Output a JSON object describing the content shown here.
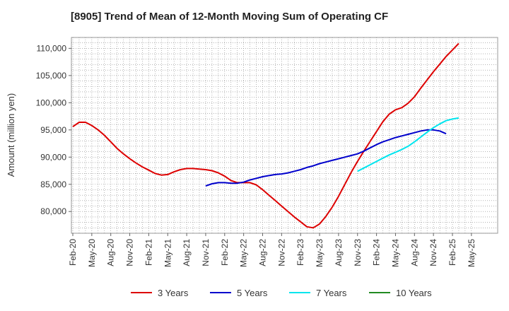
{
  "chart_data": {
    "type": "line",
    "title": "[8905]  Trend of Mean of 12-Month Moving Sum of Operating CF",
    "xlabel": "",
    "ylabel": "Amount (million yen)",
    "ylim": [
      76000,
      112000
    ],
    "yticks": [
      80000,
      85000,
      90000,
      95000,
      100000,
      105000,
      110000
    ],
    "ytick_labels": [
      "80,000",
      "85,000",
      "90,000",
      "95,000",
      "100,000",
      "105,000",
      "110,000"
    ],
    "xticks": [
      "Feb-20",
      "May-20",
      "Aug-20",
      "Nov-20",
      "Feb-21",
      "May-21",
      "Aug-21",
      "Nov-21",
      "Feb-22",
      "May-22",
      "Aug-22",
      "Nov-22",
      "Feb-23",
      "May-23",
      "Aug-23",
      "Nov-23",
      "Feb-24",
      "May-24",
      "Aug-24",
      "Nov-24",
      "Feb-25",
      "May-25"
    ],
    "grid": true,
    "legend_position": "bottom",
    "series": [
      {
        "name": "3 Years",
        "color": "#dd0000",
        "start_index": 0,
        "values": [
          95600,
          96400,
          96400,
          95800,
          95000,
          94000,
          92800,
          91600,
          90600,
          89700,
          88900,
          88200,
          87600,
          87000,
          86700,
          86800,
          87300,
          87700,
          87900,
          87900,
          87800,
          87700,
          87500,
          87100,
          86500,
          85700,
          85300,
          85300,
          85300,
          84900,
          84000,
          83000,
          82000,
          81000,
          80000,
          79000,
          78100,
          77200,
          77000,
          77700,
          79100,
          80800,
          82800,
          85000,
          87200,
          89200,
          91100,
          92900,
          94700,
          96500,
          97900,
          98700,
          99100,
          99900,
          101100,
          102700,
          104200,
          105700,
          107100,
          108500,
          109700,
          110900
        ]
      },
      {
        "name": "5 Years",
        "color": "#0000cc",
        "start_index": 21,
        "values": [
          84700,
          85100,
          85300,
          85300,
          85200,
          85200,
          85400,
          85800,
          86100,
          86400,
          86600,
          86800,
          86900,
          87100,
          87400,
          87700,
          88100,
          88400,
          88800,
          89100,
          89400,
          89700,
          90000,
          90300,
          90600,
          91100,
          91700,
          92300,
          92800,
          93200,
          93600,
          93900,
          94200,
          94500,
          94800,
          95000,
          95000,
          94800,
          94300
        ]
      },
      {
        "name": "7 Years",
        "color": "#00e5ee",
        "start_index": 45,
        "values": [
          87400,
          88000,
          88600,
          89200,
          89800,
          90400,
          90900,
          91400,
          92000,
          92800,
          93700,
          94600,
          95400,
          96100,
          96700,
          97000,
          97200
        ]
      },
      {
        "name": "10 Years",
        "color": "#228b22",
        "start_index": 0,
        "values": []
      }
    ]
  }
}
